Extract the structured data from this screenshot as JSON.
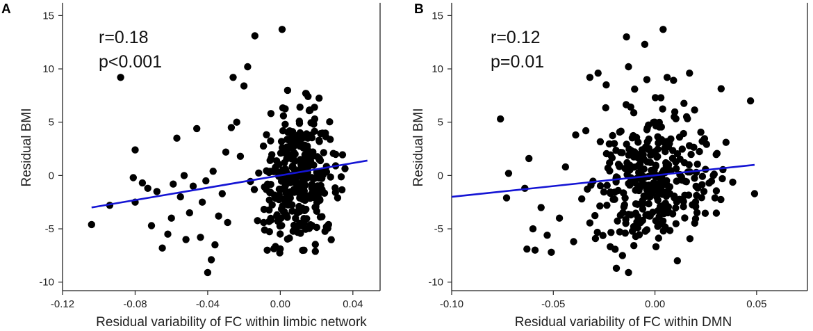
{
  "chart_data": [
    {
      "type": "scatter",
      "panel": "A",
      "xlabel": "Residual variability of FC within limbic network",
      "ylabel": "Residual BMI",
      "xlim": [
        -0.12,
        0.055
      ],
      "ylim": [
        -10.8,
        16.2
      ],
      "xticks": [
        -0.12,
        -0.08,
        -0.04,
        0.0,
        0.04
      ],
      "xtick_labels": [
        "-0.12",
        "-0.08",
        "-0.04",
        "0.00",
        "0.04"
      ],
      "yticks": [
        -10,
        -5,
        0,
        5,
        10,
        15
      ],
      "ytick_labels": [
        "-10",
        "-5",
        "0",
        "5",
        "10",
        "15"
      ],
      "annotations": [
        "r=0.18",
        "p<0.001"
      ],
      "fit_line": {
        "x": [
          -0.104,
          0.048
        ],
        "y": [
          -3.0,
          1.4
        ],
        "color": "#1414d4"
      },
      "points_outliers": [
        [
          -0.104,
          -4.6
        ],
        [
          -0.094,
          -2.8
        ],
        [
          -0.088,
          9.2
        ],
        [
          -0.08,
          2.4
        ],
        [
          -0.081,
          -0.2
        ],
        [
          -0.08,
          -2.5
        ],
        [
          -0.076,
          -0.7
        ],
        [
          -0.073,
          -1.2
        ],
        [
          -0.071,
          -4.7
        ],
        [
          -0.068,
          -1.5
        ],
        [
          -0.065,
          -6.8
        ],
        [
          -0.062,
          -5.5
        ],
        [
          -0.06,
          -4.0
        ],
        [
          -0.059,
          -0.8
        ],
        [
          -0.057,
          3.5
        ],
        [
          -0.055,
          -2.0
        ],
        [
          -0.053,
          0.0
        ],
        [
          -0.052,
          -6.0
        ],
        [
          -0.05,
          -3.5
        ],
        [
          -0.048,
          -1.0
        ],
        [
          -0.046,
          4.4
        ],
        [
          -0.044,
          -5.8
        ],
        [
          -0.043,
          -2.5
        ],
        [
          -0.041,
          -0.5
        ],
        [
          -0.04,
          -9.1
        ],
        [
          -0.038,
          -7.9
        ],
        [
          -0.037,
          0.4
        ],
        [
          -0.036,
          -6.5
        ],
        [
          -0.034,
          -3.8
        ],
        [
          -0.032,
          -1.7
        ],
        [
          -0.03,
          2.2
        ],
        [
          -0.029,
          -4.4
        ],
        [
          -0.027,
          4.5
        ],
        [
          -0.026,
          9.2
        ],
        [
          -0.024,
          5.0
        ],
        [
          -0.022,
          1.8
        ],
        [
          -0.02,
          8.4
        ],
        [
          -0.018,
          10.2
        ],
        [
          -0.014,
          13.1
        ],
        [
          0.001,
          13.7
        ]
      ],
      "dense_cluster": {
        "x_range": [
          -0.026,
          0.044
        ],
        "x_center": 0.01,
        "x_spread": 0.011,
        "y_center": -0.6,
        "y_spread": 3.2,
        "y_range": [
          -7.4,
          9.6
        ],
        "count": 330,
        "trend_slope": 29
      }
    },
    {
      "type": "scatter",
      "panel": "B",
      "xlabel": "Residual variability of FC within DMN",
      "ylabel": "Residual BMI",
      "xlim": [
        -0.1,
        0.075
      ],
      "ylim": [
        -10.8,
        16.2
      ],
      "xticks": [
        -0.1,
        -0.05,
        0.0,
        0.05
      ],
      "xtick_labels": [
        "-0.10",
        "-0.05",
        "0.00",
        "0.05"
      ],
      "yticks": [
        -10,
        -5,
        0,
        5,
        10,
        15
      ],
      "ytick_labels": [
        "-10",
        "-5",
        "0",
        "5",
        "10",
        "15"
      ],
      "annotations": [
        "r=0.12",
        "p=0.01"
      ],
      "fit_line": {
        "x": [
          -0.1,
          0.049
        ],
        "y": [
          -2.0,
          1.0
        ],
        "color": "#1414d4"
      },
      "points_outliers": [
        [
          -0.076,
          5.3
        ],
        [
          -0.072,
          0.2
        ],
        [
          -0.073,
          -2.1
        ],
        [
          -0.064,
          -1.2
        ],
        [
          -0.062,
          1.6
        ],
        [
          -0.063,
          -6.9
        ],
        [
          -0.06,
          -5.0
        ],
        [
          -0.059,
          -7.0
        ],
        [
          -0.056,
          -3.0
        ],
        [
          -0.053,
          -5.6
        ],
        [
          -0.051,
          -7.2
        ],
        [
          -0.047,
          -4.0
        ],
        [
          -0.044,
          0.8
        ],
        [
          -0.04,
          -6.2
        ],
        [
          -0.039,
          3.8
        ],
        [
          -0.036,
          -2.2
        ],
        [
          -0.034,
          4.2
        ],
        [
          -0.032,
          9.2
        ],
        [
          -0.028,
          9.6
        ],
        [
          -0.024,
          8.5
        ],
        [
          -0.02,
          3.0
        ],
        [
          -0.019,
          -8.7
        ],
        [
          -0.016,
          -7.5
        ],
        [
          -0.014,
          13.0
        ],
        [
          -0.013,
          10.2
        ],
        [
          -0.013,
          -9.1
        ],
        [
          -0.01,
          8.1
        ],
        [
          -0.005,
          12.3
        ],
        [
          -0.004,
          9.0
        ],
        [
          0.004,
          13.7
        ],
        [
          0.006,
          9.2
        ],
        [
          0.011,
          -8.0
        ],
        [
          0.017,
          9.6
        ],
        [
          0.047,
          7.0
        ],
        [
          0.049,
          -1.7
        ]
      ],
      "dense_cluster": {
        "x_range": [
          -0.034,
          0.044
        ],
        "x_center": 0.0,
        "x_spread": 0.016,
        "y_center": -0.3,
        "y_spread": 3.1,
        "y_range": [
          -7.0,
          9.0
        ],
        "count": 330,
        "trend_slope": 20
      }
    }
  ],
  "panel_letters": [
    "A",
    "B"
  ]
}
